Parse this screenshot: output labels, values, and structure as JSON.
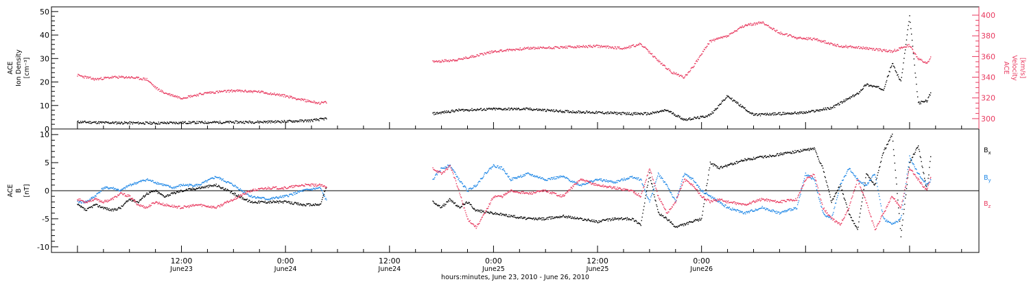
{
  "chart_data": [
    {
      "type": "scatter",
      "panel": "ion-density-velocity",
      "ylabel_left": [
        "ACE",
        "Ion Density",
        "[cm⁻³]"
      ],
      "ylabel_right": [
        "ACE",
        "Velocity",
        "[km/s]"
      ],
      "ylim_left": [
        0,
        52
      ],
      "ylim_right": [
        290,
        408
      ],
      "yticks_left": [
        0,
        10,
        20,
        30,
        40,
        50
      ],
      "yticks_right": [
        300,
        320,
        340,
        360,
        380,
        400
      ],
      "series": [
        {
          "axis": "left",
          "color": "#000000",
          "segments": [
            {
              "x": [
                0,
                3,
                6,
                9,
                12,
                15,
                18,
                21,
                24,
                27,
                28.8
              ],
              "y": [
                3,
                2.7,
                2.6,
                2.5,
                2.7,
                2.8,
                2.9,
                3,
                3.2,
                3.6,
                4.5
              ]
            },
            {
              "x": [
                41,
                44,
                48,
                52,
                56,
                60,
                64,
                66,
                68,
                70,
                72,
                73,
                75,
                78,
                81,
                84,
                87,
                88,
                90,
                91,
                92,
                93,
                94,
                95,
                96,
                97,
                98,
                98.5
              ],
              "y": [
                6.5,
                8,
                8.5,
                8.5,
                7.5,
                7,
                6.5,
                6.5,
                8,
                4,
                5,
                6,
                14,
                6,
                6.5,
                7,
                9,
                11,
                15,
                19,
                18,
                17,
                28,
                20,
                48,
                11,
                12,
                16
              ]
            }
          ]
        },
        {
          "axis": "right",
          "color": "#e8385e",
          "segments": [
            {
              "x": [
                0,
                2,
                4,
                6,
                8,
                9,
                10,
                12,
                15,
                18,
                21,
                24,
                26,
                28,
                28.8
              ],
              "y": [
                342,
                338,
                340,
                340,
                338,
                330,
                325,
                320,
                325,
                327,
                326,
                322,
                318,
                315,
                316
              ]
            },
            {
              "x": [
                41,
                44,
                48,
                52,
                56,
                60,
                63,
                65,
                67,
                68.5,
                70,
                71,
                73,
                75,
                77,
                79,
                81,
                83,
                85,
                88,
                90,
                92,
                94,
                96,
                97,
                98,
                98.5
              ],
              "y": [
                355,
                357,
                365,
                368,
                369,
                370,
                368,
                372,
                356,
                345,
                340,
                350,
                375,
                380,
                390,
                393,
                383,
                378,
                377,
                370,
                369,
                367,
                365,
                371,
                358,
                353,
                360
              ]
            }
          ]
        }
      ]
    },
    {
      "type": "scatter",
      "panel": "magnetic-field",
      "ylabel": [
        "ACE",
        "B",
        "[nT]"
      ],
      "ylim": [
        -11,
        11
      ],
      "yticks": [
        -10,
        -5,
        0,
        5,
        10
      ],
      "zero_line": true,
      "legend": [
        {
          "label": "B",
          "sub": "x",
          "color": "#000000"
        },
        {
          "label": "B",
          "sub": "y",
          "color": "#1c86e6"
        },
        {
          "label": "B",
          "sub": "z",
          "color": "#e8385e"
        }
      ],
      "series": [
        {
          "name": "Bx",
          "color": "#000000",
          "segments": [
            {
              "x": [
                0,
                1,
                2,
                3,
                4,
                5,
                6,
                7,
                8,
                9,
                10,
                12,
                14,
                16,
                18,
                20,
                22,
                24,
                26,
                28,
                28.8
              ],
              "y": [
                -2.5,
                -3.5,
                -2.5,
                -3,
                -3.5,
                -3,
                -1.5,
                -2,
                -0.5,
                0,
                -1,
                0,
                0.5,
                1,
                -0.5,
                -2,
                -2,
                -2,
                -2.5,
                -2.5,
                1
              ]
            },
            {
              "x": [
                41,
                42,
                43,
                44,
                45,
                46,
                48,
                50,
                52,
                54,
                56,
                58,
                60,
                62,
                64,
                65,
                66,
                67,
                68,
                69,
                70,
                71,
                72,
                73,
                74,
                75,
                77,
                79,
                81,
                83,
                85,
                86,
                87,
                88,
                89,
                90,
                91,
                92,
                93,
                94,
                95,
                96,
                97,
                98,
                98.5
              ],
              "y": [
                -2,
                -3,
                -1.5,
                -3,
                -2,
                -3.5,
                -4,
                -4.5,
                -5,
                -5,
                -4.5,
                -5,
                -5.5,
                -5,
                -5,
                -6,
                3,
                -4,
                -5,
                -6.5,
                -6,
                -5.5,
                -5,
                5,
                4,
                4.5,
                5.5,
                6,
                6.5,
                7,
                7.5,
                4,
                -2,
                1,
                -4,
                -7,
                3,
                1,
                7,
                10,
                -8,
                5,
                8,
                0,
                7
              ]
            }
          ]
        },
        {
          "name": "By",
          "color": "#1c86e6",
          "segments": [
            {
              "x": [
                0,
                1,
                2,
                3,
                4,
                5,
                6,
                7,
                8,
                9,
                10,
                11,
                12,
                14,
                16,
                18,
                20,
                22,
                24,
                26,
                28,
                28.8
              ],
              "y": [
                -2,
                -2,
                -1,
                0.5,
                0.5,
                0,
                1,
                1.5,
                2,
                1.5,
                1,
                0.5,
                1,
                1,
                2.5,
                1,
                -1,
                -1.5,
                -1,
                0,
                0.5,
                -2
              ]
            },
            {
              "x": [
                41,
                42,
                43,
                44,
                45,
                46,
                47,
                48,
                49,
                50,
                52,
                54,
                56,
                58,
                60,
                62,
                64,
                65,
                66,
                67,
                68,
                69,
                70,
                71,
                72,
                73,
                74,
                75,
                77,
                79,
                81,
                83,
                84,
                85,
                86,
                87,
                88,
                89,
                90,
                91,
                92,
                93,
                94,
                95,
                96,
                97,
                98,
                98.5
              ],
              "y": [
                2,
                4,
                4.5,
                2,
                0,
                1,
                3,
                4.5,
                4,
                2,
                3,
                2,
                2.5,
                1,
                2,
                1.5,
                2.5,
                2,
                -2,
                3,
                1,
                -2,
                3,
                2,
                0,
                -1,
                -2,
                -3,
                -4,
                -3,
                -4,
                -3,
                3,
                2,
                -4,
                -5,
                1,
                4,
                2,
                1,
                3,
                -5,
                -6,
                -5,
                6,
                3,
                1,
                2
              ]
            }
          ]
        },
        {
          "name": "Bz",
          "color": "#e8385e",
          "segments": [
            {
              "x": [
                0,
                1,
                2,
                3,
                4,
                5,
                6,
                7,
                8,
                9,
                10,
                12,
                14,
                16,
                18,
                20,
                22,
                24,
                26,
                28,
                28.8
              ],
              "y": [
                -1.5,
                -2,
                -1.5,
                -2,
                -1.5,
                -0.5,
                -1,
                -2.5,
                -3,
                -2,
                -2.5,
                -3,
                -2.5,
                -3,
                -1.5,
                0,
                0.5,
                0.5,
                1,
                1,
                0.5
              ]
            },
            {
              "x": [
                41,
                42,
                43,
                44,
                45,
                46,
                47,
                48,
                49,
                50,
                52,
                54,
                56,
                58,
                60,
                62,
                64,
                65,
                66,
                67,
                68,
                69,
                70,
                71,
                72,
                73,
                74,
                75,
                77,
                79,
                81,
                83,
                84,
                85,
                86,
                87,
                88,
                89,
                90,
                91,
                92,
                93,
                94,
                95,
                96,
                97,
                98,
                98.5
              ],
              "y": [
                4,
                3,
                4.5,
                0,
                -5,
                -6.5,
                -4,
                -1,
                -1,
                0,
                -0.5,
                0,
                -1,
                2,
                1,
                0.5,
                0,
                -1,
                4,
                -1,
                -4,
                -2,
                2,
                1,
                -1,
                -2,
                -1.5,
                -2,
                -2.5,
                -1.5,
                -2,
                -1.5,
                2,
                3,
                -3,
                -5,
                -6,
                -3,
                2,
                -2,
                -7,
                -4,
                -1,
                -3,
                4,
                2,
                0,
                3
              ]
            }
          ]
        }
      ]
    }
  ],
  "x_axis": {
    "range": [
      -3,
      104
    ],
    "ticks": [
      {
        "x": 12,
        "time": "12:00",
        "date": "June23"
      },
      {
        "x": 24,
        "time": "0:00",
        "date": "June24"
      },
      {
        "x": 36,
        "time": "12:00",
        "date": "June24"
      },
      {
        "x": 48,
        "time": "0:00",
        "date": "June25"
      },
      {
        "x": 60,
        "time": "12:00",
        "date": "June25"
      },
      {
        "x": 72,
        "time": "0:00",
        "date": "June26"
      }
    ],
    "label": "hours:minutes, June 23, 2010 - June 26, 2010"
  },
  "colors": {
    "black": "#000000",
    "blue": "#1c86e6",
    "red": "#e8385e"
  }
}
